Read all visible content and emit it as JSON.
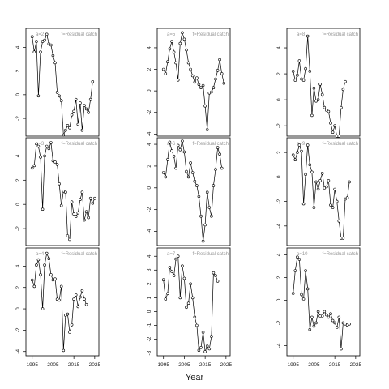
{
  "chart_data": {
    "type": "line",
    "xlabel": "Year",
    "layout": "3x3 grid of panels, framed boxes, x tick labels only on the bottom row, y tick labels rotated",
    "panels": [
      {
        "label_a": "a=2",
        "label_f": "f=Residual catch",
        "ylim": [
          -3.5,
          5.6
        ],
        "yticks": [
          -2,
          0,
          2,
          4
        ],
        "xlim": [
          1992,
          2027
        ],
        "xticks": [
          1995,
          2005,
          2015,
          2025
        ],
        "show_xticks": false,
        "x": [
          1995,
          1996,
          1997,
          1998,
          1999,
          2000,
          2001,
          2002,
          2003,
          2004,
          2005,
          2006,
          2007,
          2008,
          2009,
          2010,
          2011,
          2012,
          2013,
          2014,
          2015,
          2016,
          2017,
          2018,
          2019,
          2020,
          2021,
          2022,
          2023,
          2024,
          2025
        ],
        "y": [
          4.9,
          3.6,
          4.5,
          -0.1,
          3.6,
          4.5,
          4.6,
          5.1,
          4.3,
          4.2,
          3.3,
          2.7,
          0.2,
          -0.1,
          -0.5,
          -3.4,
          -3.0,
          -2.6,
          -2.8,
          -1.7,
          -1.4,
          -0.4,
          -2.5,
          -0.7,
          -3.0,
          -0.9,
          -1.2,
          -1.5,
          -0.4,
          1.1,
          null
        ]
      },
      {
        "label_a": "a=5",
        "label_f": "f=Residual catch",
        "ylim": [
          -4.2,
          5.8
        ],
        "yticks": [
          -4,
          -2,
          0,
          2,
          4
        ],
        "xlim": [
          1992,
          2027
        ],
        "xticks": [
          1995,
          2005,
          2015,
          2025
        ],
        "show_xticks": false,
        "x": [
          1995,
          1996,
          1997,
          1998,
          1999,
          2000,
          2001,
          2002,
          2003,
          2004,
          2005,
          2006,
          2007,
          2008,
          2009,
          2010,
          2011,
          2012,
          2013,
          2014,
          2015,
          2016,
          2017,
          2018,
          2019,
          2020,
          2021,
          2022,
          2023,
          2024
        ],
        "y": [
          2.0,
          1.6,
          2.7,
          3.9,
          4.6,
          3.6,
          2.6,
          1.0,
          4.4,
          5.4,
          4.8,
          3.8,
          2.6,
          2.0,
          1.4,
          0.8,
          1.2,
          0.6,
          0.3,
          0.5,
          -1.4,
          -3.6,
          -0.2,
          -0.1,
          0.3,
          1.1,
          1.9,
          2.9,
          1.6,
          0.7
        ]
      },
      {
        "label_a": "a=8",
        "label_f": "f=Residual catch",
        "ylim": [
          -2.8,
          5.5
        ],
        "yticks": [
          -2,
          0,
          2,
          4
        ],
        "xlim": [
          1992,
          2027
        ],
        "xticks": [
          1995,
          2005,
          2015,
          2025
        ],
        "show_xticks": false,
        "x": [
          1995,
          1996,
          1997,
          1998,
          1999,
          2000,
          2001,
          2002,
          2003,
          2004,
          2005,
          2006,
          2007,
          2008,
          2009,
          2010,
          2011,
          2012,
          2013,
          2014,
          2015,
          2016,
          2017,
          2018,
          2019,
          2020,
          2021,
          2022,
          2023,
          2024
        ],
        "y": [
          2.2,
          1.5,
          1.9,
          3.0,
          1.6,
          1.5,
          2.4,
          4.9,
          2.2,
          -1.2,
          0.9,
          -0.1,
          0.0,
          1.2,
          0.4,
          -0.6,
          -0.8,
          -0.9,
          -1.8,
          -2.5,
          -2.0,
          -2.8,
          -2.8,
          -0.6,
          0.8,
          1.4,
          null,
          null,
          null,
          null
        ]
      },
      {
        "label_a": "a=3",
        "label_f": "f=Residual catch",
        "ylim": [
          -3.4,
          5.5
        ],
        "yticks": [
          -2,
          0,
          2,
          4
        ],
        "xlim": [
          1992,
          2027
        ],
        "xticks": [
          1995,
          2005,
          2015,
          2025
        ],
        "show_xticks": false,
        "x": [
          1995,
          1996,
          1997,
          1998,
          1999,
          2000,
          2001,
          2002,
          2003,
          2004,
          2005,
          2006,
          2007,
          2008,
          2009,
          2010,
          2011,
          2012,
          2013,
          2014,
          2015,
          2016,
          2017,
          2018,
          2019,
          2020,
          2021,
          2022,
          2023,
          2024,
          2025
        ],
        "y": [
          3.0,
          3.2,
          5.0,
          4.8,
          3.9,
          -0.4,
          4.0,
          4.8,
          4.6,
          5.1,
          3.6,
          3.5,
          3.3,
          1.7,
          -0.1,
          1.1,
          1.0,
          -2.6,
          -2.9,
          0.2,
          -0.8,
          -1.0,
          -0.7,
          0.4,
          1.0,
          -1.3,
          -0.6,
          -1.1,
          0.5,
          0.1,
          0.5
        ]
      },
      {
        "label_a": "a=6",
        "label_f": "f=Residual catch",
        "ylim": [
          -5.3,
          4.6
        ],
        "yticks": [
          -4,
          -2,
          0,
          2,
          4
        ],
        "xlim": [
          1992,
          2027
        ],
        "xticks": [
          1995,
          2005,
          2015,
          2025
        ],
        "show_xticks": false,
        "x": [
          1995,
          1996,
          1997,
          1998,
          1999,
          2000,
          2001,
          2002,
          2003,
          2004,
          2005,
          2006,
          2007,
          2008,
          2009,
          2010,
          2011,
          2012,
          2013,
          2014,
          2015,
          2016,
          2017,
          2018,
          2019,
          2020,
          2021,
          2022,
          2023,
          2024
        ],
        "y": [
          1.4,
          1.0,
          2.6,
          4.2,
          3.4,
          2.9,
          1.8,
          3.9,
          3.5,
          4.3,
          3.3,
          1.5,
          1.0,
          2.3,
          1.4,
          0.6,
          0.2,
          -0.8,
          -2.6,
          -4.9,
          -3.4,
          -0.4,
          -1.8,
          -2.6,
          0.2,
          1.7,
          3.7,
          3.1,
          1.8,
          null
        ]
      },
      {
        "label_a": "a=9",
        "label_f": "f=Residual catch",
        "ylim": [
          -5.6,
          3.2
        ],
        "yticks": [
          -4,
          -2,
          0,
          2
        ],
        "xlim": [
          1992,
          2027
        ],
        "xticks": [
          1995,
          2005,
          2015,
          2025
        ],
        "show_xticks": false,
        "x": [
          1995,
          1996,
          1997,
          1998,
          1999,
          2000,
          2001,
          2002,
          2003,
          2004,
          2005,
          2006,
          2007,
          2008,
          2009,
          2010,
          2011,
          2012,
          2013,
          2014,
          2015,
          2016,
          2017,
          2018,
          2019,
          2020,
          2021,
          2022,
          2023,
          2024
        ],
        "y": [
          1.8,
          1.4,
          2.0,
          2.6,
          2.1,
          -2.2,
          0.2,
          2.6,
          1.0,
          0.4,
          -2.5,
          -0.4,
          -1.0,
          -0.3,
          0.3,
          -0.9,
          -0.8,
          -0.3,
          -2.3,
          -2.5,
          -1.0,
          -2.0,
          -3.6,
          -5.0,
          -5.0,
          -1.8,
          -1.7,
          -0.4,
          null,
          null
        ]
      },
      {
        "label_a": "a=4",
        "label_f": "f=Residual catch",
        "ylim": [
          -4.4,
          5.7
        ],
        "yticks": [
          -4,
          -2,
          0,
          2,
          4
        ],
        "xlim": [
          1992,
          2027
        ],
        "xticks": [
          1995,
          2005,
          2015,
          2025
        ],
        "show_xticks": true,
        "x": [
          1995,
          1996,
          1997,
          1998,
          1999,
          2000,
          2001,
          2002,
          2003,
          2004,
          2005,
          2006,
          2007,
          2008,
          2009,
          2010,
          2011,
          2012,
          2013,
          2014,
          2015,
          2016,
          2017,
          2018,
          2019,
          2020,
          2021,
          2022,
          2023,
          2024
        ],
        "y": [
          2.7,
          2.1,
          4.1,
          4.6,
          3.2,
          0.0,
          4.1,
          5.2,
          4.7,
          3.2,
          2.7,
          2.8,
          0.9,
          0.8,
          2.1,
          -3.9,
          -0.6,
          -0.5,
          -2.2,
          -1.5,
          0.9,
          1.3,
          0.2,
          1.1,
          1.7,
          0.9,
          0.4,
          null,
          null,
          null
        ]
      },
      {
        "label_a": "a=7",
        "label_f": "f=Residual catch",
        "ylim": [
          -3.2,
          4.6
        ],
        "yticks": [
          -3,
          -2,
          -1,
          0,
          1,
          2,
          3,
          4
        ],
        "xlim": [
          1992,
          2027
        ],
        "xticks": [
          1995,
          2005,
          2015,
          2025
        ],
        "show_xticks": true,
        "x": [
          1995,
          1996,
          1997,
          1998,
          1999,
          2000,
          2001,
          2002,
          2003,
          2004,
          2005,
          2006,
          2007,
          2008,
          2009,
          2010,
          2011,
          2012,
          2013,
          2014,
          2015,
          2016,
          2017,
          2018,
          2019,
          2020,
          2021,
          2022,
          2023,
          2024
        ],
        "y": [
          2.3,
          0.9,
          1.3,
          3.2,
          2.9,
          2.6,
          3.8,
          4.0,
          1.0,
          3.3,
          2.4,
          0.3,
          0.6,
          2.0,
          1.0,
          -0.4,
          -1.0,
          -2.8,
          -2.6,
          -1.5,
          -2.9,
          -2.5,
          -2.7,
          -1.8,
          2.8,
          2.6,
          2.2,
          null,
          null,
          null
        ]
      },
      {
        "label_a": "a=10",
        "label_f": "f=Residual catch",
        "ylim": [
          -4.9,
          4.6
        ],
        "yticks": [
          -4,
          -2,
          0,
          2,
          4
        ],
        "xlim": [
          1992,
          2027
        ],
        "xticks": [
          1995,
          2005,
          2015,
          2025
        ],
        "show_xticks": true,
        "x": [
          1995,
          1996,
          1997,
          1998,
          1999,
          2000,
          2001,
          2002,
          2003,
          2004,
          2005,
          2006,
          2007,
          2008,
          2009,
          2010,
          2011,
          2012,
          2013,
          2014,
          2015,
          2016,
          2017,
          2018,
          2019,
          2020,
          2021,
          2022,
          2023,
          2024
        ],
        "y": [
          0.6,
          2.6,
          3.8,
          3.6,
          0.5,
          0.1,
          2.6,
          1.0,
          -2.6,
          -1.5,
          -2.3,
          -2.0,
          -1.0,
          -1.4,
          -1.4,
          -1.0,
          -1.3,
          -1.5,
          -1.2,
          -1.8,
          -2.0,
          -2.4,
          -1.5,
          -4.3,
          -2.0,
          -2.1,
          -2.2,
          -2.1,
          null,
          null
        ]
      }
    ]
  }
}
